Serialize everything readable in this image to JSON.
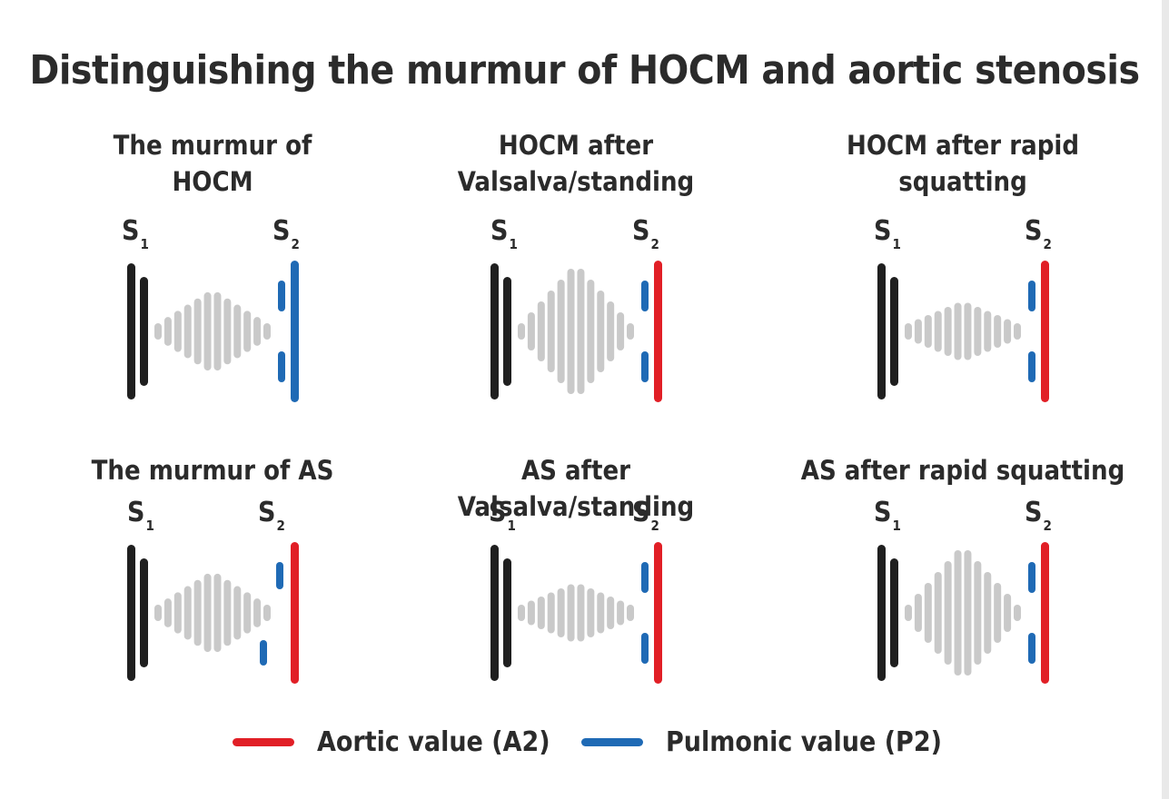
{
  "title": "Distinguishing the murmur of HOCM and aortic stenosis",
  "colors": {
    "murmur": "#c9c9c9",
    "s1": "#1f1f1f",
    "aortic": "#e11f26",
    "pulmonic": "#1f6ab5"
  },
  "s1_label": {
    "main": "S",
    "sub": "1"
  },
  "s2_label": {
    "main": "S",
    "sub": "2"
  },
  "panels": [
    {
      "title": "The murmur of\nHOCM",
      "s2_color": "pulmonic",
      "split": "pulmonic",
      "murmur_scale": 0.62
    },
    {
      "title": "HOCM after\nValsalva/standing",
      "s2_color": "aortic",
      "split": "pulmonic",
      "murmur_scale": 1.0
    },
    {
      "title": "HOCM after rapid\nsquatting",
      "s2_color": "aortic",
      "split": "pulmonic",
      "murmur_scale": 0.45
    },
    {
      "title": "The murmur of AS",
      "s2_color": "aortic",
      "split": "pulmonic_paradoxical",
      "murmur_scale": 0.62
    },
    {
      "title": "AS after Valsalva/standing",
      "s2_color": "aortic",
      "split": "pulmonic",
      "murmur_scale": 0.45
    },
    {
      "title": "AS after rapid squatting",
      "s2_color": "aortic",
      "split": "pulmonic",
      "murmur_scale": 1.0
    }
  ],
  "legend": [
    {
      "label": "Aortic value (A2)",
      "color": "aortic"
    },
    {
      "label": "Pulmonic value (P2)",
      "color": "pulmonic"
    }
  ]
}
